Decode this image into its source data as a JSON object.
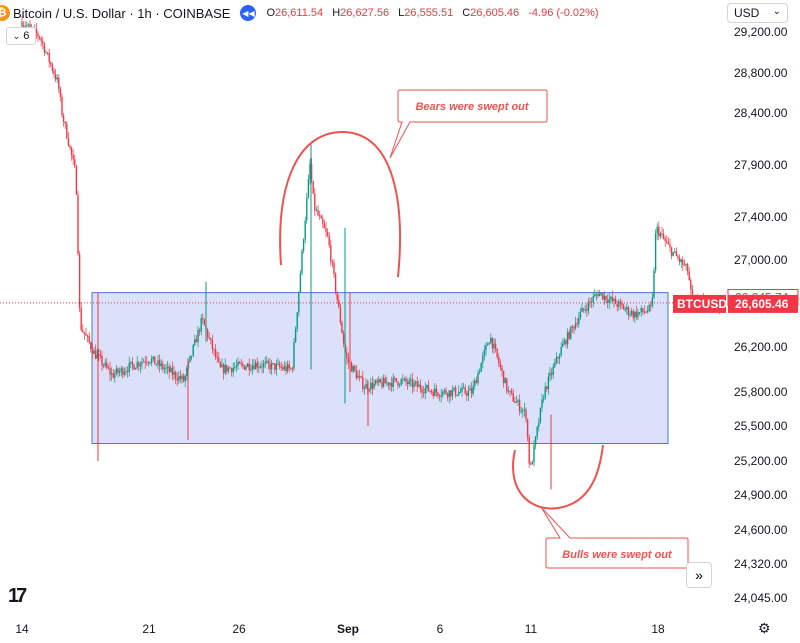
{
  "header": {
    "symbol_title": "Bitcoin / U.S. Dollar · 1h · COINBASE",
    "open_label": "O",
    "open": "26,611.54",
    "high_label": "H",
    "high": "26,627.56",
    "low_label": "L",
    "low": "26,555.51",
    "close_label": "C",
    "close": "26,605.46",
    "change": "-4.96 (-0.02%)",
    "coin_icon": "bitcoin-icon",
    "replay_icon": "rewind-icon",
    "indicator_count": "6"
  },
  "currency_selector": {
    "value": "USD"
  },
  "brand_logo_text": "17",
  "scroll_button_icon": "double-chevron-right-icon",
  "settings_icon": "gear-icon",
  "chart_data": {
    "type": "line",
    "subtype": "candlestick",
    "symbol": "BTCUSD",
    "timeframe": "1h",
    "x_tick_labels": [
      "14",
      "21",
      "26",
      "Sep",
      "6",
      "11",
      "18"
    ],
    "y_tick_labels": [
      "29,200.00",
      "28,800.00",
      "28,400.00",
      "27,900.00",
      "27,400.00",
      "27,000.00",
      "26,200.00",
      "25,800.00",
      "25,500.00",
      "25,200.00",
      "24,900.00",
      "24,600.00",
      "24,320.00",
      "24,045.00"
    ],
    "ylim": [
      24000,
      29300
    ],
    "price_path": [
      {
        "x": "Aug 14",
        "y": 29300
      },
      {
        "x": "Aug 15",
        "y": 29150
      },
      {
        "x": "Aug 16",
        "y": 28700
      },
      {
        "x": "Aug 16",
        "y": 28400
      },
      {
        "x": "Aug 17",
        "y": 27800
      },
      {
        "x": "Aug 17",
        "y": 26400
      },
      {
        "x": "Aug 18",
        "y": 26150
      },
      {
        "x": "Aug 19",
        "y": 25950
      },
      {
        "x": "Aug 21",
        "y": 26100
      },
      {
        "x": "Aug 23",
        "y": 25900
      },
      {
        "x": "Aug 24",
        "y": 26450
      },
      {
        "x": "Aug 25",
        "y": 26000
      },
      {
        "x": "Aug 27",
        "y": 26050
      },
      {
        "x": "Aug 29",
        "y": 26000
      },
      {
        "x": "Aug 30",
        "y": 27900
      },
      {
        "x": "Aug 30",
        "y": 27500
      },
      {
        "x": "Aug 31",
        "y": 27200
      },
      {
        "x": "Sep 1",
        "y": 26100
      },
      {
        "x": "Sep 2",
        "y": 25850
      },
      {
        "x": "Sep 4",
        "y": 25900
      },
      {
        "x": "Sep 6",
        "y": 25800
      },
      {
        "x": "Sep 8",
        "y": 25800
      },
      {
        "x": "Sep 9",
        "y": 26300
      },
      {
        "x": "Sep 10",
        "y": 25800
      },
      {
        "x": "Sep 11",
        "y": 25600
      },
      {
        "x": "Sep 11",
        "y": 25100
      },
      {
        "x": "Sep 12",
        "y": 25800
      },
      {
        "x": "Sep 13",
        "y": 26200
      },
      {
        "x": "Sep 14",
        "y": 26500
      },
      {
        "x": "Sep 15",
        "y": 26700
      },
      {
        "x": "Sep 16",
        "y": 26600
      },
      {
        "x": "Sep 17",
        "y": 26500
      },
      {
        "x": "Sep 18",
        "y": 26550
      },
      {
        "x": "Sep 18",
        "y": 27300
      },
      {
        "x": "Sep 19",
        "y": 27100
      },
      {
        "x": "Sep 20",
        "y": 26900
      },
      {
        "x": "Sep 20",
        "y": 26605
      }
    ],
    "range_box": {
      "top": 26700,
      "bottom": 25350,
      "color": "#d6def8"
    },
    "last_price": "26,605.46",
    "price_label_upper": "26,645.74",
    "symbol_label": "BTCUSD",
    "colors": {
      "up": "#089981",
      "down": "#f23645",
      "annotation": "#ef5350",
      "box_border": "#4a78d1"
    },
    "annotations": [
      {
        "text": "Bears were swept out",
        "shape": "arc-above"
      },
      {
        "text": "Bulls were swept out",
        "shape": "arc-below"
      }
    ]
  }
}
